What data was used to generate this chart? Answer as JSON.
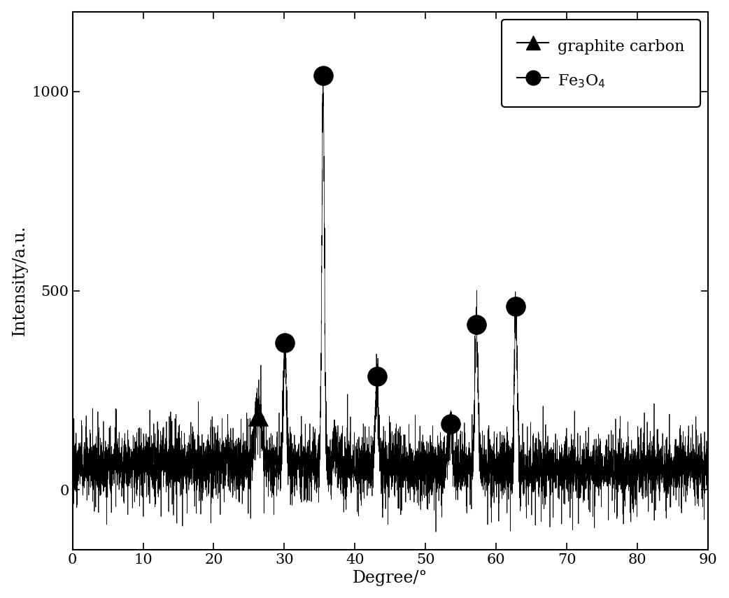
{
  "title": "",
  "xlabel": "Degree/°",
  "ylabel": "Intensity/a.u.",
  "xlim": [
    0,
    90
  ],
  "ylim": [
    -150,
    1200
  ],
  "yticks": [
    0,
    500,
    1000
  ],
  "xticks": [
    0,
    10,
    20,
    30,
    40,
    50,
    60,
    70,
    80,
    90
  ],
  "background_color": "#ffffff",
  "line_color": "#000000",
  "graphite_peak": {
    "x": 26.3,
    "marker_y": 185
  },
  "fe3o4_peaks": [
    {
      "x": 30.1,
      "peak_amp": 300,
      "marker_y": 370
    },
    {
      "x": 35.5,
      "peak_amp": 980,
      "marker_y": 1040
    },
    {
      "x": 43.1,
      "peak_amp": 230,
      "marker_y": 285
    },
    {
      "x": 53.5,
      "peak_amp": 110,
      "marker_y": 165
    },
    {
      "x": 57.2,
      "peak_amp": 370,
      "marker_y": 415
    },
    {
      "x": 62.8,
      "peak_amp": 390,
      "marker_y": 460
    }
  ],
  "noise_seed": 7,
  "n_points": 8500,
  "figsize": [
    10.42,
    8.55
  ],
  "dpi": 100
}
